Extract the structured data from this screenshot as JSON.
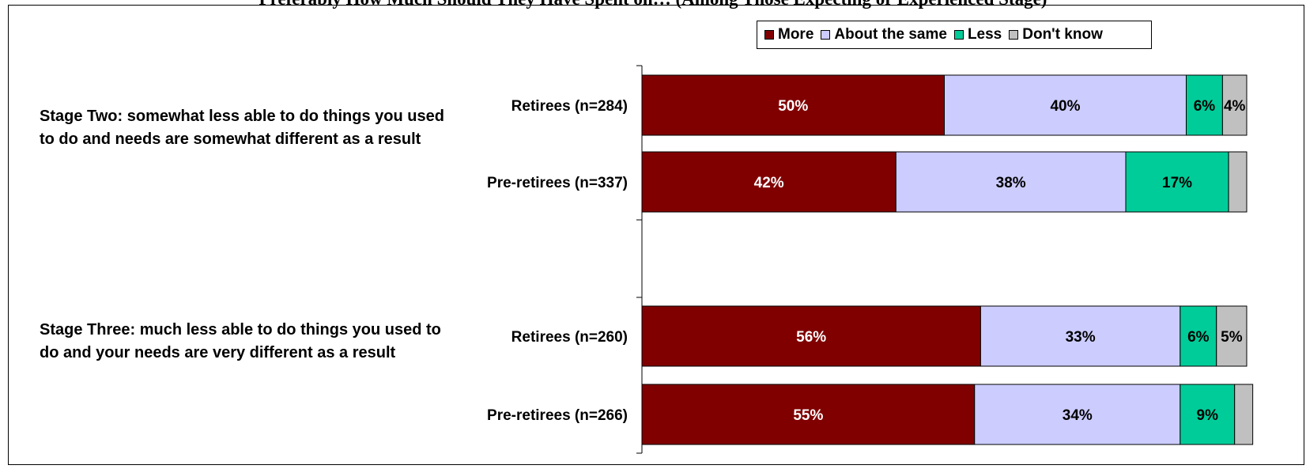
{
  "title": "Preferably How Much Should They Have Spent on… (Among Those Expecting or Experienced Stage)",
  "legend": {
    "items": [
      {
        "label": "More",
        "color": "#800000"
      },
      {
        "label": "About the same",
        "color": "#CCCCFF"
      },
      {
        "label": "Less",
        "color": "#00CC99"
      },
      {
        "label": "Don't know",
        "color": "#C0C0C0"
      }
    ]
  },
  "groups": [
    {
      "label": "Stage Two: somewhat less able to do things you used to do and needs are somewhat different as a result"
    },
    {
      "label": "Stage Three: much less able to do things you used to do and your needs are very different as a result"
    }
  ],
  "chart_data": {
    "type": "bar",
    "orientation": "horizontal",
    "stacked": true,
    "percent_scale": [
      0,
      100
    ],
    "legend_position": "top-right",
    "categories": [
      "Retirees (n=284)",
      "Pre-retirees (n=337)",
      "Retirees (n=260)",
      "Pre-retirees (n=266)"
    ],
    "category_groups": [
      0,
      0,
      1,
      1
    ],
    "series": [
      {
        "name": "More",
        "color": "#800000",
        "label_color": "#FFFFFF",
        "values": [
          50,
          42,
          56,
          55
        ],
        "labels": [
          "50%",
          "42%",
          "56%",
          "55%"
        ]
      },
      {
        "name": "About the same",
        "color": "#CCCCFF",
        "label_color": "#000000",
        "values": [
          40,
          38,
          33,
          34
        ],
        "labels": [
          "40%",
          "38%",
          "33%",
          "34%"
        ]
      },
      {
        "name": "Less",
        "color": "#00CC99",
        "label_color": "#000000",
        "values": [
          6,
          17,
          6,
          9
        ],
        "labels": [
          "6%",
          "17%",
          "6%",
          "9%"
        ]
      },
      {
        "name": "Don't know",
        "color": "#C0C0C0",
        "label_color": "#000000",
        "values": [
          4,
          3,
          5,
          3
        ],
        "labels": [
          "4%",
          "",
          "5%",
          ""
        ]
      }
    ]
  }
}
